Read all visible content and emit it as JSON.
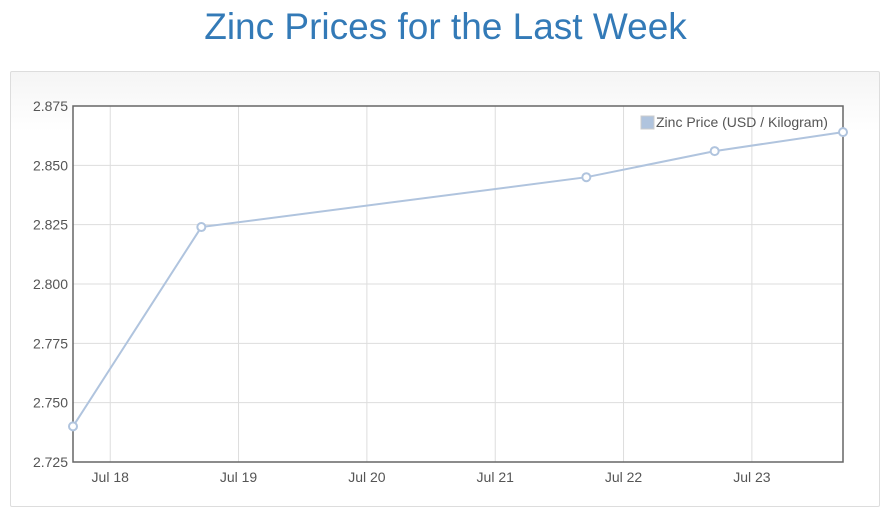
{
  "chart_data": {
    "type": "line",
    "title": "Zinc Prices for the Last Week",
    "xlabel": "",
    "ylabel": "",
    "series": [
      {
        "name": "Zinc Price (USD / Kilogram)",
        "color": "#b0c4de",
        "x": [
          17.71,
          18.71,
          21.71,
          22.71,
          23.71
        ],
        "values": [
          2.74,
          2.824,
          2.845,
          2.856,
          2.864
        ]
      }
    ],
    "xlim": [
      17.71,
      23.71
    ],
    "x_ticks": [
      18,
      19,
      20,
      21,
      22,
      23
    ],
    "x_tick_labels": [
      "Jul 18",
      "Jul 19",
      "Jul 20",
      "Jul 21",
      "Jul 22",
      "Jul 23"
    ],
    "ylim": [
      2.725,
      2.875
    ],
    "y_ticks": [
      2.725,
      2.75,
      2.775,
      2.8,
      2.825,
      2.85,
      2.875
    ],
    "y_tick_labels": [
      "2.725",
      "2.750",
      "2.775",
      "2.800",
      "2.825",
      "2.850",
      "2.875"
    ],
    "grid": true,
    "legend": "top-right"
  }
}
